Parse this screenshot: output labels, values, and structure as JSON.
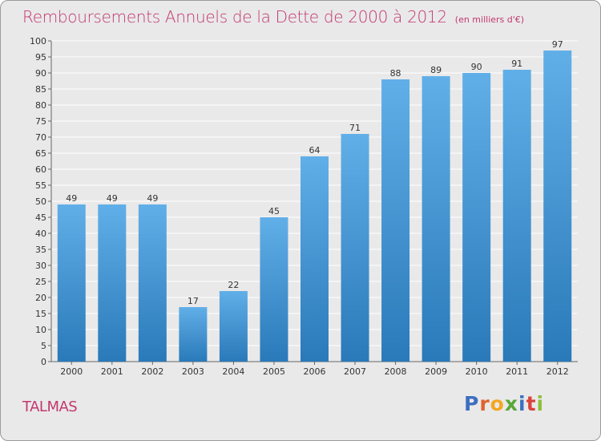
{
  "header": {
    "title": "Remboursements Annuels de la Dette de 2000 à 2012",
    "unit_note": "(en milliers d'€)"
  },
  "footer": {
    "commune": "TALMAS",
    "logo_letters": [
      {
        "char": "P",
        "color": "#3d6fc0"
      },
      {
        "char": "r",
        "color": "#e0622e"
      },
      {
        "char": "o",
        "color": "#f5a623"
      },
      {
        "char": "x",
        "color": "#58a83a"
      },
      {
        "char": "i",
        "color": "#3d6fc0"
      },
      {
        "char": "t",
        "color": "#d9443a"
      },
      {
        "char": "i",
        "color": "#8fbf3a"
      }
    ]
  },
  "colors": {
    "bar_top": "#61afe8",
    "bar_bottom": "#2a79b9",
    "title": "#c2386e",
    "grid": "#ffffff",
    "axis_text": "#333333"
  },
  "chart_data": {
    "type": "bar",
    "categories": [
      "2000",
      "2001",
      "2002",
      "2003",
      "2004",
      "2005",
      "2006",
      "2007",
      "2008",
      "2009",
      "2010",
      "2011",
      "2012"
    ],
    "values": [
      49,
      49,
      49,
      17,
      22,
      45,
      64,
      71,
      88,
      89,
      90,
      91,
      97
    ],
    "ylim": [
      0,
      100
    ],
    "ytick_step": 5,
    "grid": true,
    "xlabel": "",
    "ylabel": ""
  }
}
